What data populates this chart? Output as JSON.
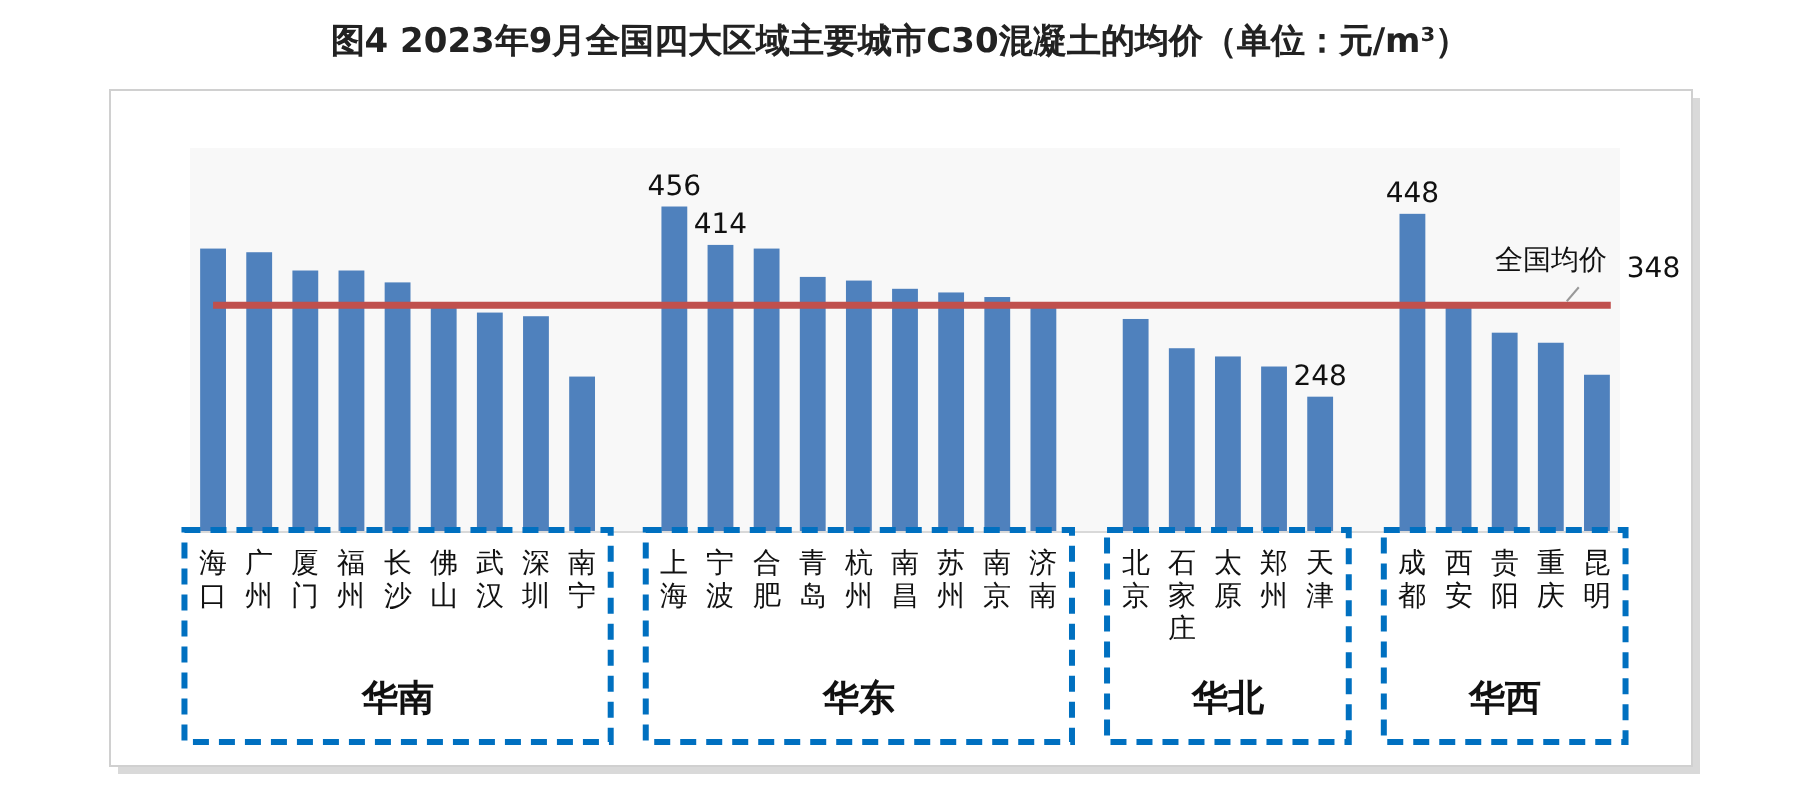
{
  "chart_data": {
    "type": "bar",
    "title": "图4  2023年9月全国四大区域主要城市C30混凝土的均价（单位：元/m³）",
    "categories": [
      "海口",
      "广州",
      "厦门",
      "福州",
      "长沙",
      "佛山",
      "武汉",
      "深圳",
      "南宁",
      null,
      "上海",
      "宁波",
      "合肥",
      "青岛",
      "杭州",
      "南昌",
      "苏州",
      "南京",
      "济南",
      null,
      "北京",
      "石家庄",
      "太原",
      "郑州",
      "天津",
      null,
      "成都",
      "西安",
      "贵阳",
      "重庆",
      "昆明"
    ],
    "values": [
      410,
      406,
      386,
      386,
      373,
      347,
      340,
      336,
      270,
      null,
      456,
      414,
      410,
      379,
      375,
      366,
      362,
      357,
      347,
      null,
      333,
      301,
      292,
      281,
      248,
      null,
      448,
      347,
      318,
      307,
      272
    ],
    "value_labels": [
      null,
      null,
      null,
      null,
      null,
      null,
      null,
      null,
      null,
      null,
      "456",
      "414",
      null,
      null,
      null,
      null,
      null,
      null,
      null,
      null,
      null,
      null,
      null,
      null,
      "248",
      null,
      "448",
      null,
      null,
      null,
      null
    ],
    "color": "#4f81bd",
    "ylim": [
      100,
      520
    ],
    "tick_labels": "x",
    "ref_lines": [
      {
        "axis": "y",
        "value": 348,
        "label": "全国均价",
        "color": "#c0504d"
      }
    ],
    "annotations": [
      "华南",
      "华东",
      "华北",
      "华西",
      "348"
    ]
  }
}
